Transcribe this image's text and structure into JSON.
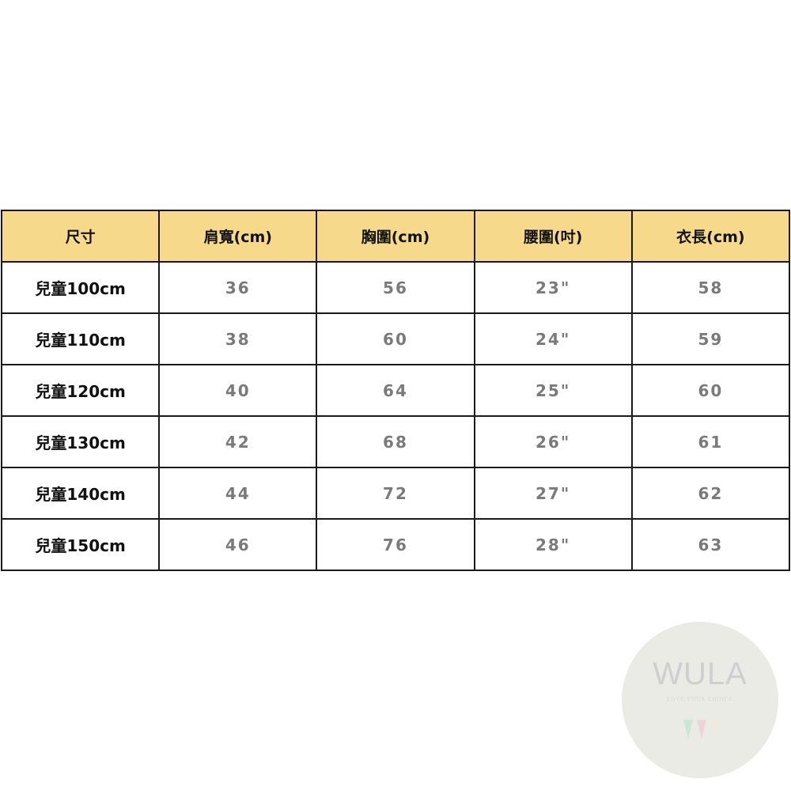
{
  "table": {
    "headers": [
      "尺寸",
      "肩寬(cm)",
      "胸圍(cm)",
      "腰圍(吋)",
      "衣長(cm)"
    ],
    "rows": [
      [
        "兒童100cm",
        "36",
        "56",
        "23\"",
        "58"
      ],
      [
        "兒童110cm",
        "38",
        "60",
        "24\"",
        "59"
      ],
      [
        "兒童120cm",
        "40",
        "64",
        "25\"",
        "60"
      ],
      [
        "兒童130cm",
        "42",
        "68",
        "26\"",
        "61"
      ],
      [
        "兒童140cm",
        "44",
        "72",
        "27\"",
        "62"
      ],
      [
        "兒童150cm",
        "46",
        "76",
        "28\"",
        "63"
      ]
    ]
  },
  "watermark": {
    "brand": "WULA",
    "tagline": "LOVE YOUR CHOICE"
  },
  "colors": {
    "header_bg": "#f6d98b",
    "value_text": "#7a7a7a"
  }
}
